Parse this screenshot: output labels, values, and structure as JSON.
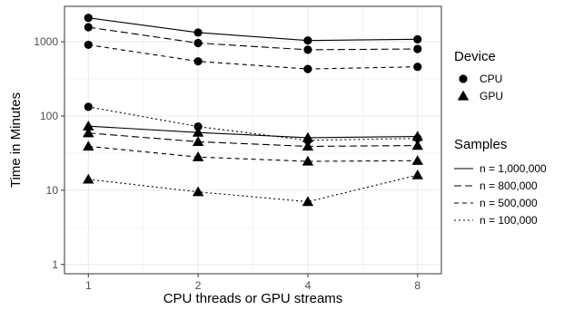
{
  "chart_data": {
    "type": "line",
    "title": "",
    "xlabel": "CPU threads or GPU streams",
    "ylabel": "Time in Minutes",
    "x": [
      1,
      2,
      4,
      8
    ],
    "x_scale": "log2",
    "x_tick_labels": [
      "1",
      "2",
      "4",
      "8"
    ],
    "y_scale": "log10",
    "ylim": [
      0.75,
      3000
    ],
    "y_tick_labels": [
      "1",
      "10",
      "100",
      "1000"
    ],
    "grid": true,
    "legend_placement": "right",
    "legend": {
      "device_title": "Device",
      "device_items": [
        {
          "label": "CPU",
          "shape": "circle"
        },
        {
          "label": "GPU",
          "shape": "triangle"
        }
      ],
      "samples_title": "Samples",
      "samples_items": [
        {
          "label": "n = 1,000,000",
          "dash": "solid"
        },
        {
          "label": "n = 800,000",
          "dash": "longdash"
        },
        {
          "label": "n = 500,000",
          "dash": "dashed"
        },
        {
          "label": "n = 100,000",
          "dash": "dotted"
        }
      ]
    },
    "series": [
      {
        "device": "CPU",
        "samples": "n = 1,000,000",
        "values": [
          2100,
          1330,
          1040,
          1080
        ]
      },
      {
        "device": "CPU",
        "samples": "n = 800,000",
        "values": [
          1570,
          960,
          780,
          800
        ]
      },
      {
        "device": "CPU",
        "samples": "n = 500,000",
        "values": [
          910,
          545,
          430,
          460
        ]
      },
      {
        "device": "CPU",
        "samples": "n = 100,000",
        "values": [
          133,
          72,
          47,
          50
        ]
      },
      {
        "device": "GPU",
        "samples": "n = 1,000,000",
        "values": [
          73,
          60,
          51,
          53
        ]
      },
      {
        "device": "GPU",
        "samples": "n = 800,000",
        "values": [
          59,
          45,
          39,
          40
        ]
      },
      {
        "device": "GPU",
        "samples": "n = 500,000",
        "values": [
          39,
          28,
          24.5,
          25
        ]
      },
      {
        "device": "GPU",
        "samples": "n = 100,000",
        "values": [
          14,
          9.5,
          7,
          16
        ]
      }
    ],
    "colors": {
      "panel_border": "#333333",
      "grid_major": "#ebebeb",
      "grid_minor": "#f5f5f5",
      "series": "#000000"
    }
  }
}
